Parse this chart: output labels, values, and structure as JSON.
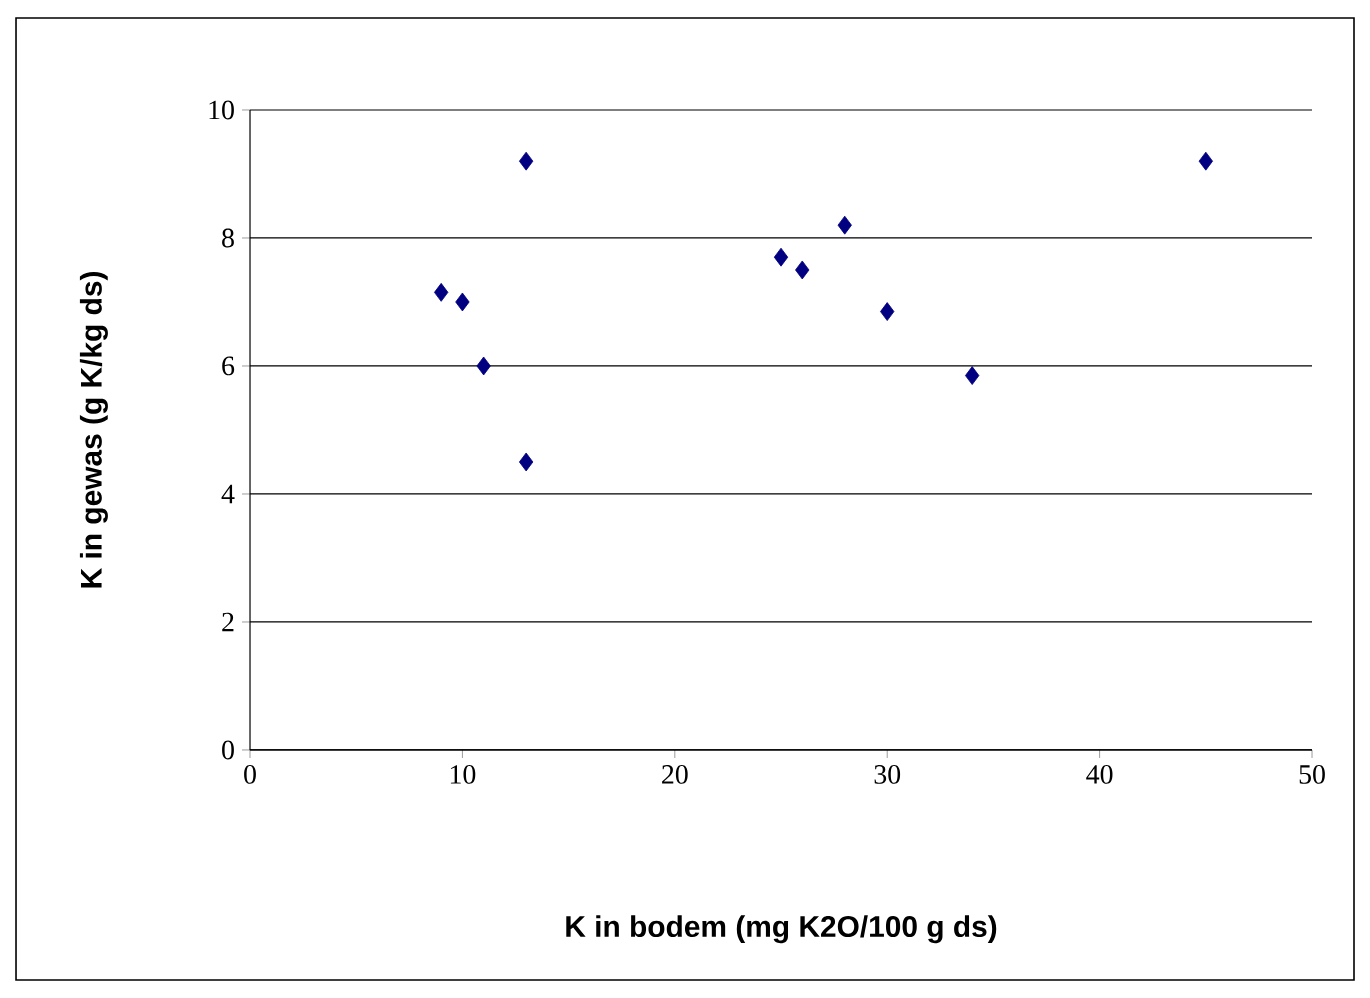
{
  "chart_data": {
    "type": "scatter",
    "xlabel": "K in bodem (mg K2O/100 g ds)",
    "ylabel": "K in gewas (g K/kg ds)",
    "x": [
      9,
      10,
      11,
      13,
      13,
      25,
      26,
      28,
      30,
      34,
      45
    ],
    "values": [
      7.15,
      7.0,
      6.0,
      9.2,
      4.5,
      7.7,
      7.5,
      8.2,
      6.85,
      5.85,
      9.2
    ],
    "color": "#000080",
    "marker": "diamond",
    "grid": "y",
    "xlim": [
      0,
      50
    ],
    "xticks": [
      0,
      10,
      20,
      30,
      40,
      50
    ],
    "ylim": [
      0,
      10
    ],
    "yticks": [
      0,
      2,
      4,
      6,
      8,
      10
    ]
  }
}
